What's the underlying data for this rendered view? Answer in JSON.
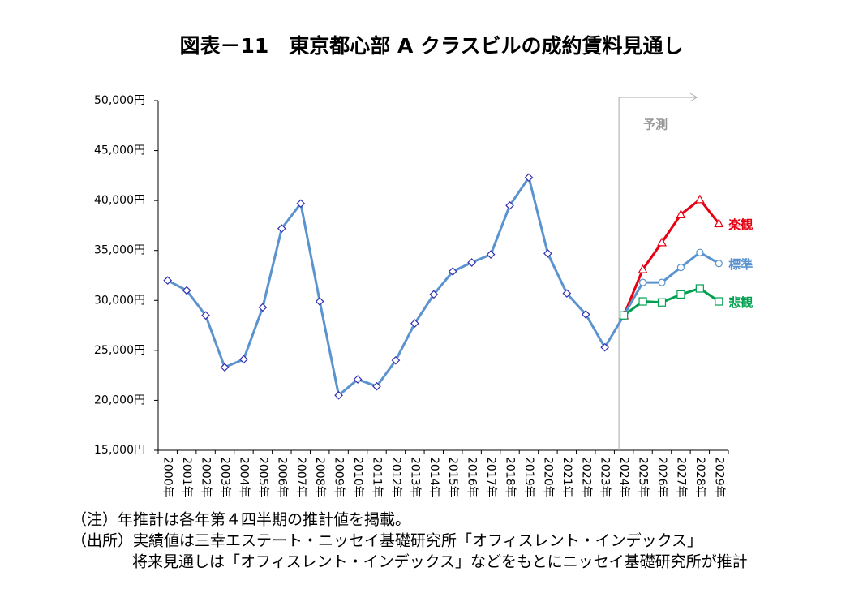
{
  "chart_data": {
    "type": "line",
    "title": "図表－11　東京都心部 A クラスビルの成約賃料見通し",
    "categories": [
      "2000年",
      "2001年",
      "2002年",
      "2003年",
      "2004年",
      "2005年",
      "2006年",
      "2007年",
      "2008年",
      "2009年",
      "2010年",
      "2011年",
      "2012年",
      "2013年",
      "2014年",
      "2015年",
      "2016年",
      "2017年",
      "2018年",
      "2019年",
      "2020年",
      "2021年",
      "2022年",
      "2023年",
      "2024年",
      "2025年",
      "2026年",
      "2027年",
      "2028年",
      "2029年"
    ],
    "series": [
      {
        "name": "楽観",
        "color": "#e60012",
        "marker": "triangle",
        "values": [
          null,
          null,
          null,
          null,
          null,
          null,
          null,
          null,
          null,
          null,
          null,
          null,
          null,
          null,
          null,
          null,
          null,
          null,
          null,
          null,
          null,
          null,
          null,
          null,
          28500,
          33100,
          35800,
          38600,
          40100,
          37700
        ]
      },
      {
        "name": "標準",
        "color": "#5b93cf",
        "marker": "diamond",
        "forecast_marker": "circle",
        "values": [
          32000,
          31000,
          28500,
          23300,
          24100,
          29300,
          37200,
          39700,
          29900,
          20500,
          22100,
          21400,
          24000,
          27700,
          30600,
          32900,
          33800,
          34600,
          39500,
          42300,
          34700,
          30700,
          28600,
          25300,
          28500,
          31800,
          31800,
          33300,
          34800,
          33700
        ]
      },
      {
        "name": "悲観",
        "color": "#00a050",
        "marker": "square",
        "values": [
          null,
          null,
          null,
          null,
          null,
          null,
          null,
          null,
          null,
          null,
          null,
          null,
          null,
          null,
          null,
          null,
          null,
          null,
          null,
          null,
          null,
          null,
          null,
          null,
          28500,
          29900,
          29800,
          30600,
          31200,
          29900
        ]
      }
    ],
    "ylim": [
      15000,
      50000
    ],
    "yticks": [
      {
        "value": 15000,
        "label": "15,000円"
      },
      {
        "value": 20000,
        "label": "20,000円"
      },
      {
        "value": 25000,
        "label": "25,000円"
      },
      {
        "value": 30000,
        "label": "30,000円"
      },
      {
        "value": 35000,
        "label": "35,000円"
      },
      {
        "value": 40000,
        "label": "40,000円"
      },
      {
        "value": 45000,
        "label": "45,000円"
      },
      {
        "value": 50000,
        "label": "50,000円"
      }
    ],
    "grid": false,
    "forecast": {
      "label": "予測",
      "from": "2024年"
    },
    "notes": [
      "（注）年推計は各年第４四半期の推計値を掲載。",
      "（出所）実績値は三幸エステート・ニッセイ基礎研究所「オフィスレント・インデックス」",
      "将来見通しは「オフィスレント・インデックス」などをもとにニッセイ基礎研究所が推計"
    ]
  }
}
